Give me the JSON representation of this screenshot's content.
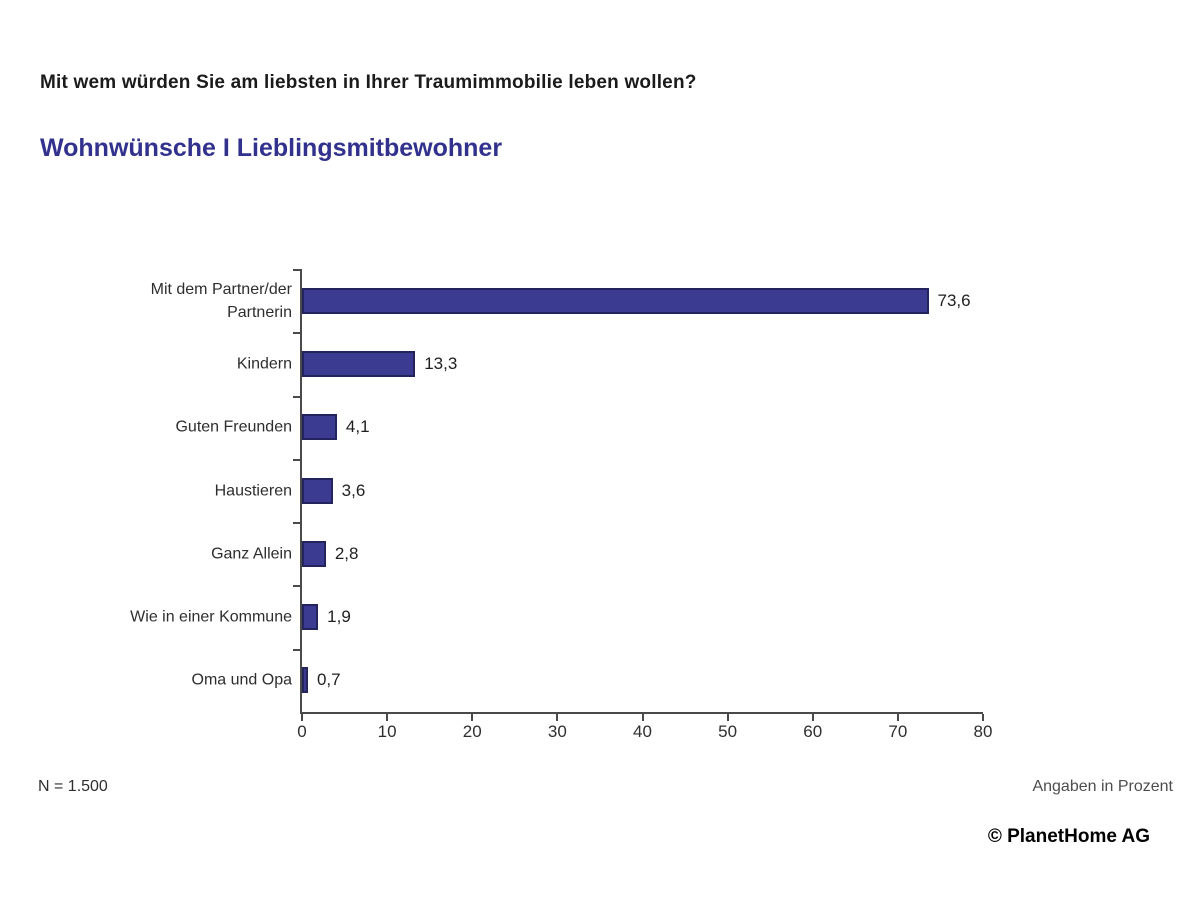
{
  "header": {
    "question": "Mit wem würden Sie am liebsten in Ihrer Traumimmobilie leben wollen?",
    "title": "Wohnwünsche I Lieblingsmitbewohner",
    "title_color": "#32318d"
  },
  "chart_data": {
    "type": "bar",
    "orientation": "horizontal",
    "title": "Wohnwünsche I Lieblingsmitbewohner",
    "categories": [
      "Mit dem Partner/der Partnerin",
      "Kindern",
      "Guten Freunden",
      "Haustieren",
      "Ganz Allein",
      "Wie in einer Kommune",
      "Oma und Opa"
    ],
    "values": [
      73.6,
      13.3,
      4.1,
      3.6,
      2.8,
      1.9,
      0.7
    ],
    "value_labels": [
      "73,6",
      "13,3",
      "4,1",
      "3,6",
      "2,8",
      "1,9",
      "0,7"
    ],
    "xlabel": "",
    "ylabel": "",
    "xlim": [
      0,
      80
    ],
    "x_ticks": [
      "0",
      "10",
      "20",
      "30",
      "40",
      "50",
      "60",
      "70",
      "80"
    ],
    "grid": false,
    "legend": "none",
    "bar_color": "#3b3b92",
    "bar_border_color": "#23235e",
    "axis_color": "#4a4a4a"
  },
  "footer": {
    "sample_size": "N = 1.500",
    "unit_note": "Angaben in Prozent",
    "copyright": "© PlanetHome AG"
  }
}
